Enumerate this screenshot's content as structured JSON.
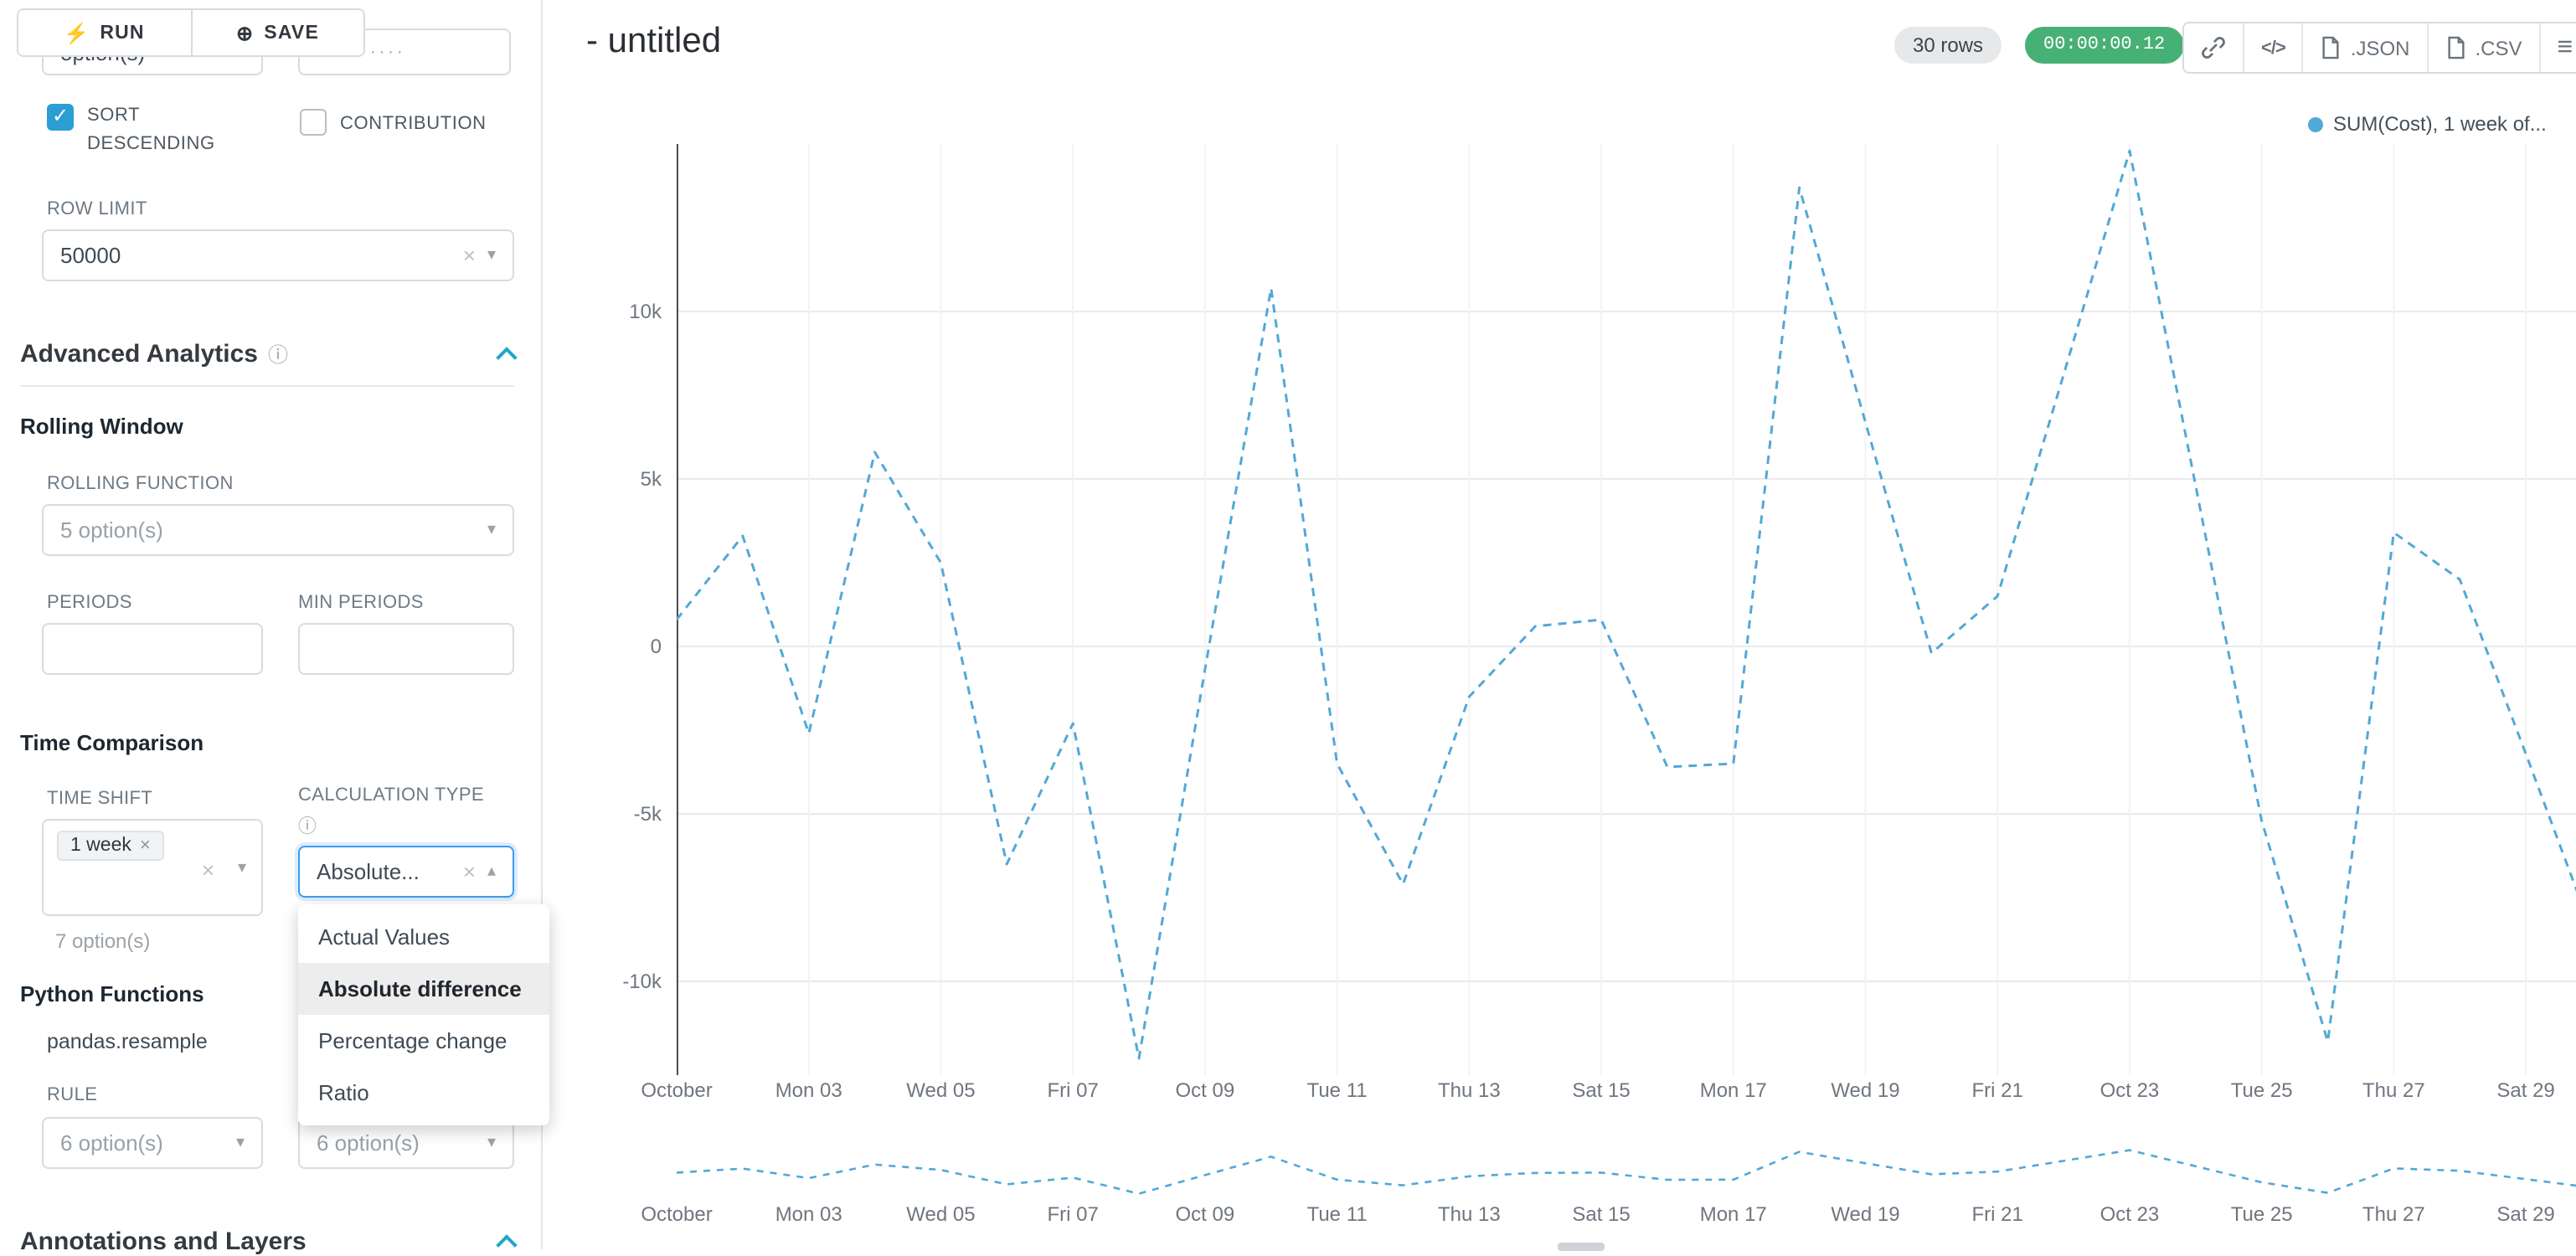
{
  "header": {
    "title": "- untitled",
    "rows_badge": "30 rows",
    "timer_badge": "00:00:00.12",
    "toolbar": {
      "json_label": ".JSON",
      "csv_label": ".CSV",
      "code_glyph": "</>"
    }
  },
  "left_panel": {
    "run_label": "RUN",
    "save_label": "SAVE",
    "top_partial_left": "option(s)",
    "top_partial_right": "··········",
    "sort_descending_label": "SORT DESCENDING",
    "contribution_label": "CONTRIBUTION",
    "row_limit_label": "ROW LIMIT",
    "row_limit_value": "50000",
    "advanced_analytics_title": "Advanced Analytics",
    "rolling_window_title": "Rolling Window",
    "rolling_function_label": "ROLLING FUNCTION",
    "rolling_function_value": "5 option(s)",
    "periods_label": "PERIODS",
    "min_periods_label": "MIN PERIODS",
    "time_comparison_title": "Time Comparison",
    "time_shift_label": "TIME SHIFT",
    "time_shift_tag": "1 week",
    "time_shift_helper": "7 option(s)",
    "calculation_type_label": "CALCULATION TYPE",
    "calculation_type_value": "Absolute...",
    "calc_options": [
      "Actual Values",
      "Absolute difference",
      "Percentage change",
      "Ratio"
    ],
    "calc_selected": "Absolute difference",
    "python_functions_title": "Python Functions",
    "python_function_name": "pandas.resample",
    "rule_label": "RULE",
    "rule_value_left": "6 option(s)",
    "rule_value_right": "6 option(s)",
    "annotations_title": "Annotations and Layers"
  },
  "icons": {
    "run": "⚡",
    "save": "⊕",
    "info": "ⓘ",
    "clear": "×",
    "caret_down": "▾",
    "caret_up": "▴",
    "check": "✓",
    "menu": "≡",
    "tag_close": "×"
  },
  "chart_data": {
    "type": "line",
    "title": "",
    "legend": [
      {
        "label": "SUM(Cost), 1 week of...",
        "color": "#52A8D7"
      }
    ],
    "color": "#52A8D7",
    "line_dash": true,
    "grid": true,
    "legend_position": "top-right",
    "x": [
      "Oct 01",
      "Oct 02",
      "Oct 03",
      "Oct 04",
      "Oct 05",
      "Oct 06",
      "Oct 07",
      "Oct 08",
      "Oct 09",
      "Oct 10",
      "Oct 11",
      "Oct 12",
      "Oct 13",
      "Oct 14",
      "Oct 15",
      "Oct 16",
      "Oct 17",
      "Oct 18",
      "Oct 19",
      "Oct 20",
      "Oct 21",
      "Oct 22",
      "Oct 23",
      "Oct 24",
      "Oct 25",
      "Oct 26",
      "Oct 27",
      "Oct 28",
      "Oct 29",
      "Oct 30"
    ],
    "x_tick_labels": [
      "October",
      "Mon 03",
      "Wed 05",
      "Fri 07",
      "Oct 09",
      "Tue 11",
      "Thu 13",
      "Sat 15",
      "Mon 17",
      "Wed 19",
      "Fri 21",
      "Oct 23",
      "Tue 25",
      "Thu 27",
      "Sat 29"
    ],
    "tick_every": 2,
    "y_axis": {
      "ticks": [
        {
          "label": "10k",
          "value": 10000
        },
        {
          "label": "5k",
          "value": 5000
        },
        {
          "label": "0",
          "value": 0
        },
        {
          "label": "-5k",
          "value": -5000
        },
        {
          "label": "-10k",
          "value": -10000
        }
      ],
      "range": [
        -12700,
        14900
      ]
    },
    "values": [
      800,
      3300,
      -2600,
      5800,
      2500,
      -6500,
      -2300,
      -12300,
      -700,
      10700,
      -3500,
      -7100,
      -1500,
      600,
      800,
      -3600,
      -3500,
      13700,
      6700,
      -200,
      1500,
      8100,
      14800,
      4800,
      -5200,
      -11800,
      3400,
      2000,
      -3200,
      -8500
    ],
    "mini_chart": true
  }
}
